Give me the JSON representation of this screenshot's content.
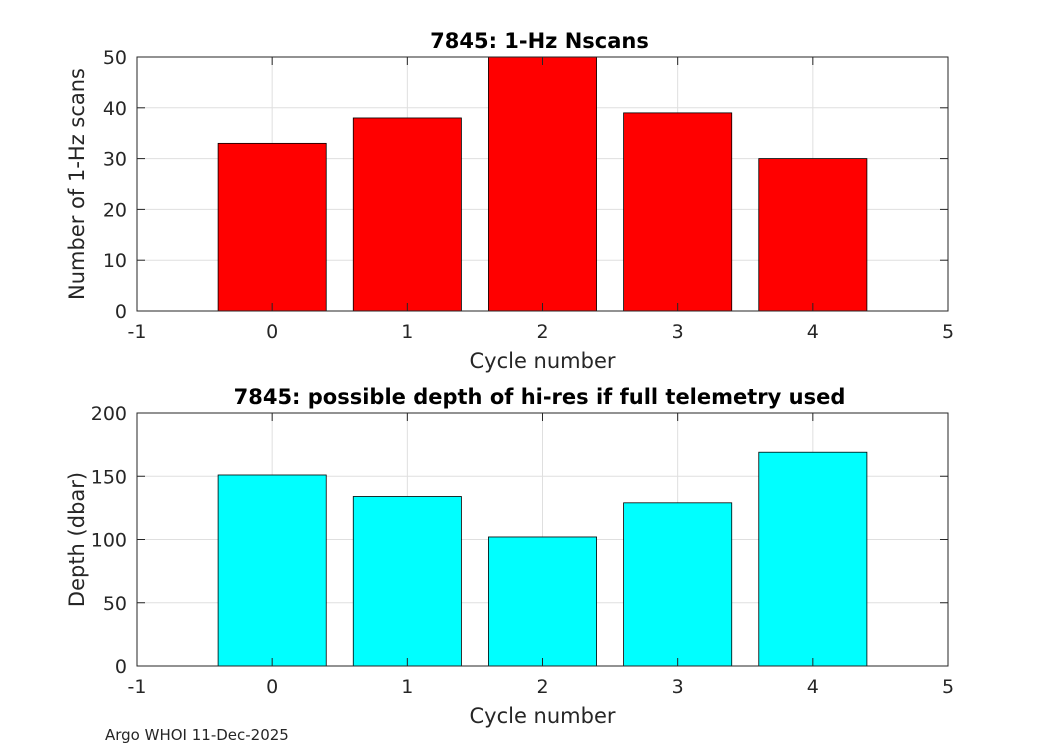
{
  "chart_data": [
    {
      "type": "bar",
      "title": "7845: 1-Hz Nscans",
      "xlabel": "Cycle number",
      "ylabel": "Number of 1-Hz scans",
      "x": [
        0,
        1,
        2,
        3,
        4
      ],
      "values": [
        33,
        38,
        50,
        39,
        30
      ],
      "xlim": [
        -1,
        5
      ],
      "ylim": [
        0,
        50
      ],
      "xticks": [
        -1,
        0,
        1,
        2,
        3,
        4,
        5
      ],
      "yticks": [
        0,
        10,
        20,
        30,
        40,
        50
      ],
      "grid": true,
      "color": "#ff0000"
    },
    {
      "type": "bar",
      "title": "7845: possible depth of hi-res if full telemetry used",
      "xlabel": "Cycle number",
      "ylabel": "Depth (dbar)",
      "x": [
        0,
        1,
        2,
        3,
        4
      ],
      "values": [
        151,
        134,
        102,
        129,
        169
      ],
      "xlim": [
        -1,
        5
      ],
      "ylim": [
        0,
        200
      ],
      "xticks": [
        -1,
        0,
        1,
        2,
        3,
        4,
        5
      ],
      "yticks": [
        0,
        50,
        100,
        150,
        200
      ],
      "grid": true,
      "color": "#00ffff"
    }
  ],
  "footer": "Argo WHOI 11-Dec-2025"
}
